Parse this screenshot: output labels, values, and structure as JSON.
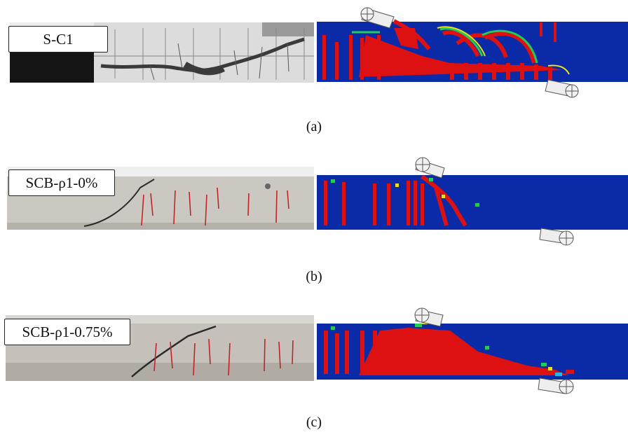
{
  "panels": [
    {
      "id": "a",
      "label": "S-C1",
      "caption": "(a)"
    },
    {
      "id": "b",
      "label": "SCB-ρ1-0%",
      "caption": "(b)"
    },
    {
      "id": "c",
      "label": "SCB-ρ1-0.75%",
      "caption": "(c)"
    }
  ],
  "colors": {
    "fem_background": "#0a2aa8",
    "crack_red": "#dd1111",
    "transition_green": "#22cc55",
    "transition_yellow": "#e8e020",
    "transition_cyan": "#22b8e8",
    "photo_concrete": "#c9c6c0",
    "photo_bw": "#e4e4e4",
    "marker_red": "#c0242a"
  },
  "icons": [
    "roller-support-icon",
    "load-roller-icon"
  ]
}
